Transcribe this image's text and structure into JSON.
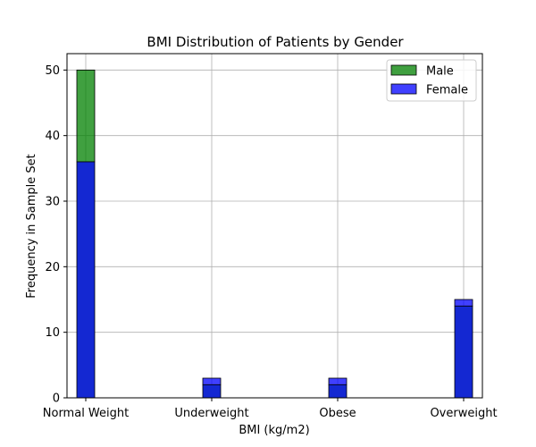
{
  "chart_data": {
    "type": "bar",
    "title": "BMI Distribution of Patients by Gender",
    "xlabel": "BMI (kg/m2)",
    "ylabel": "Frequency in Sample Set",
    "categories": [
      "Normal Weight",
      "Underweight",
      "Obese",
      "Overweight"
    ],
    "series": [
      {
        "name": "Male",
        "values": [
          50,
          2,
          2,
          14
        ],
        "color": "#008000"
      },
      {
        "name": "Female",
        "values": [
          36,
          3,
          3,
          15
        ],
        "color": "#0000ff"
      }
    ],
    "overlap_color": "#1428d2",
    "ylim": [
      0,
      52.5
    ],
    "yticks": [
      0,
      10,
      20,
      30,
      40,
      50
    ],
    "grid": true,
    "legend_position": "top-right"
  }
}
